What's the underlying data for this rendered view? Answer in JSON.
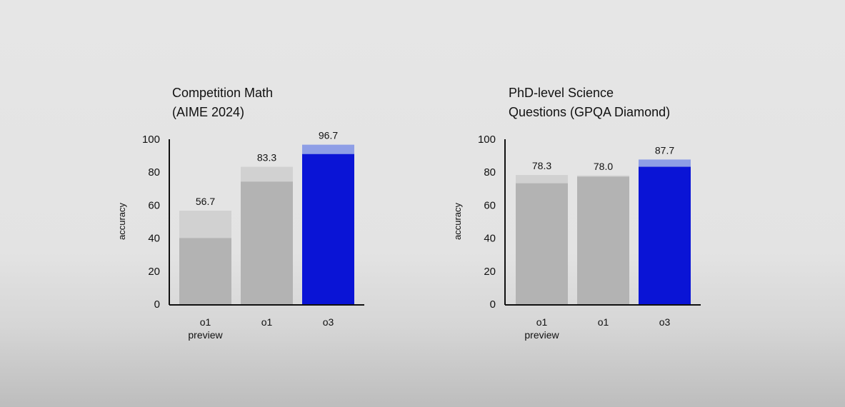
{
  "colors": {
    "bar_light": "#d1d1d1",
    "bar_dark": "#b3b3b3",
    "accent_light": "#8e9ee6",
    "accent_dark": "#0a14d6",
    "axis": "#111111"
  },
  "chart_data": [
    {
      "type": "bar",
      "title": [
        "Competition Math",
        "(AIME 2024)"
      ],
      "ylabel": "accuracy",
      "ylim": [
        0,
        100
      ],
      "yticks": [
        "0",
        "20",
        "40",
        "60",
        "80",
        "100"
      ],
      "categories": [
        [
          "o1",
          "preview"
        ],
        [
          "o1"
        ],
        [
          "o3"
        ]
      ],
      "series": [
        {
          "values": [
            40.1,
            74.3,
            91.0
          ]
        },
        {
          "values": [
            56.7,
            83.3,
            96.7
          ]
        }
      ],
      "data_labels": [
        "56.7",
        "83.3",
        "96.7"
      ],
      "highlight_index": 2
    },
    {
      "type": "bar",
      "title": [
        "PhD-level Science",
        "Questions (GPQA Diamond)"
      ],
      "ylabel": "accuracy",
      "ylim": [
        0,
        100
      ],
      "yticks": [
        "0",
        "20",
        "40",
        "60",
        "80",
        "100"
      ],
      "categories": [
        [
          "o1",
          "preview"
        ],
        [
          "o1"
        ],
        [
          "o3"
        ]
      ],
      "series": [
        {
          "values": [
            73.3,
            77.3,
            83.3
          ]
        },
        {
          "values": [
            78.3,
            78.0,
            87.7
          ]
        }
      ],
      "data_labels": [
        "78.3",
        "78.0",
        "87.7"
      ],
      "highlight_index": 2
    }
  ]
}
